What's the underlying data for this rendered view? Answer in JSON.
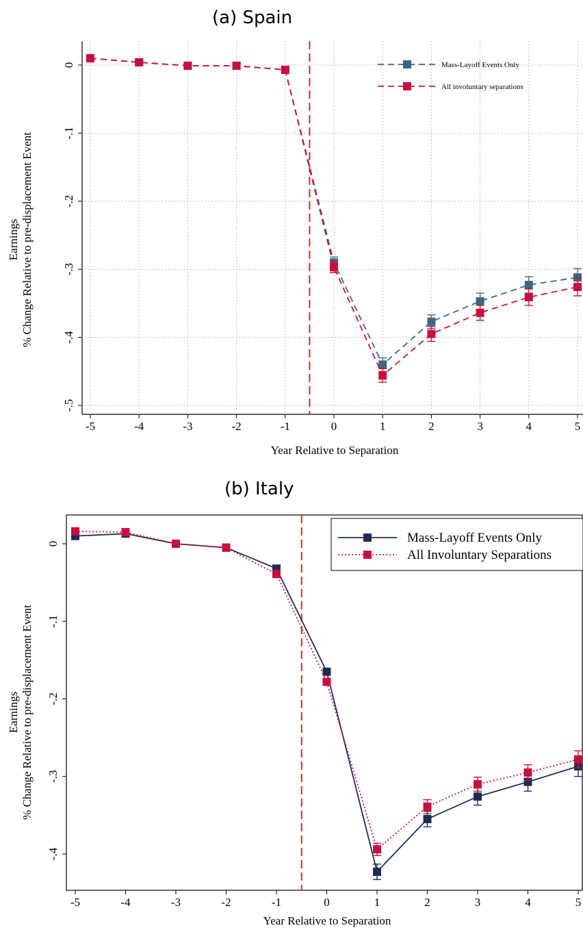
{
  "chart_data": [
    {
      "type": "line",
      "title": "(a) Spain",
      "xlabel": "Year Relative to Separation",
      "ylabel": [
        "Earnings",
        "% Change Relative to pre-displacement Event"
      ],
      "x": [
        -5,
        -4,
        -3,
        -2,
        -1,
        0,
        1,
        2,
        3,
        4,
        5
      ],
      "xlim": [
        -5,
        5
      ],
      "ylim": [
        -0.5,
        0
      ],
      "yticks": [
        0,
        -0.1,
        -0.2,
        -0.3,
        -0.4,
        -0.5
      ],
      "ytick_labels": [
        "0",
        "-.1",
        "-.2",
        "-.3",
        "-.4",
        "-.5"
      ],
      "xtick_labels": [
        "-5",
        "-4",
        "-3",
        "-2",
        "-1",
        "0",
        "1",
        "2",
        "3",
        "4",
        "5"
      ],
      "vline": -0.5,
      "grid": true,
      "legend_position": "top-right",
      "series": [
        {
          "name": "Mass-Layoff Events Only",
          "color": "#3f6680",
          "line": "dashed",
          "values": [
            0.01,
            0.004,
            -0.001,
            -0.001,
            -0.007,
            -0.29,
            -0.44,
            -0.377,
            -0.347,
            -0.323,
            -0.312
          ],
          "ci": [
            0,
            0,
            0,
            0,
            0,
            0.008,
            0.01,
            0.01,
            0.012,
            0.012,
            0.013
          ]
        },
        {
          "name": "All involuntary separations",
          "color": "#c8103e",
          "line": "dashed",
          "values": [
            0.01,
            0.004,
            -0.001,
            -0.001,
            -0.007,
            -0.297,
            -0.456,
            -0.395,
            -0.364,
            -0.341,
            -0.326
          ],
          "ci": [
            0,
            0,
            0,
            0,
            0,
            0.008,
            0.01,
            0.011,
            0.011,
            0.012,
            0.013
          ]
        }
      ]
    },
    {
      "type": "line",
      "title": "(b) Italy",
      "xlabel": "Year Relative to Separation",
      "ylabel": [
        "Earnings",
        "% Change Relative to pre-displacement Event"
      ],
      "x": [
        -5,
        -4,
        -3,
        -2,
        -1,
        0,
        1,
        2,
        3,
        4,
        5
      ],
      "xlim": [
        -5,
        5
      ],
      "ylim": [
        -0.44,
        0.03
      ],
      "yticks": [
        0,
        -0.1,
        -0.2,
        -0.3,
        -0.4
      ],
      "ytick_labels": [
        "0",
        "-.1",
        "-.2",
        "-.3",
        "-.4"
      ],
      "xtick_labels": [
        "-5",
        "-4",
        "-3",
        "-2",
        "-1",
        "0",
        "1",
        "2",
        "3",
        "4",
        "5"
      ],
      "vline": -0.5,
      "grid": false,
      "legend_position": "top-right",
      "series": [
        {
          "name": "Mass-Layoff Events Only",
          "color": "#1f2d54",
          "line": "solid",
          "values": [
            0.01,
            0.013,
            0.0,
            -0.005,
            -0.032,
            -0.165,
            -0.423,
            -0.355,
            -0.326,
            -0.307,
            -0.287
          ],
          "ci": [
            0,
            0,
            0,
            0,
            0,
            0,
            0.01,
            0.01,
            0.011,
            0.012,
            0.013
          ]
        },
        {
          "name": "All Involuntary Separations",
          "color": "#c8103e",
          "line": "dotted",
          "values": [
            0.016,
            0.015,
            0.0,
            -0.005,
            -0.039,
            -0.178,
            -0.394,
            -0.339,
            -0.31,
            -0.295,
            -0.278
          ],
          "ci": [
            0,
            0,
            0,
            0,
            0,
            0,
            0.008,
            0.009,
            0.009,
            0.01,
            0.011
          ]
        }
      ]
    }
  ]
}
